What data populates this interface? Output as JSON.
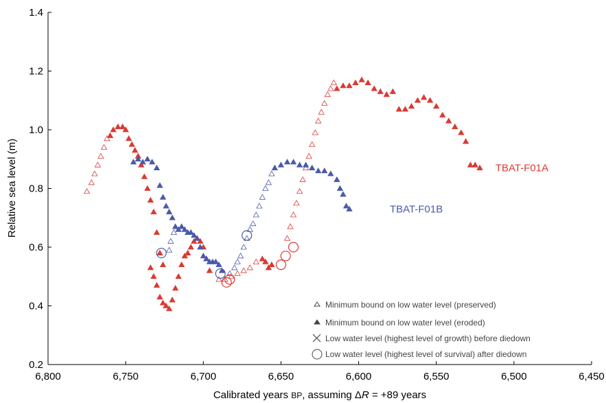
{
  "chart_data": {
    "type": "scatter",
    "xlabel_prefix": "Calibrated years ",
    "xlabel_bp": "BP",
    "xlabel_mid": ", assuming Δ",
    "xlabel_r": "R",
    "xlabel_suffix": " = +89 years",
    "ylabel": "Relative sea level (m)",
    "xlim": [
      6800,
      6450
    ],
    "ylim": [
      0.2,
      1.4
    ],
    "x_reversed": true,
    "x_ticks": [
      6800,
      6750,
      6700,
      6650,
      6600,
      6550,
      6500,
      6450
    ],
    "x_tick_labels": [
      "6,800",
      "6,750",
      "6,700",
      "6,650",
      "6,600",
      "6,550",
      "6,500",
      "6,450"
    ],
    "y_ticks": [
      0.2,
      0.4,
      0.6,
      0.8,
      1.0,
      1.2,
      1.4
    ],
    "y_tick_labels": [
      "0.2",
      "0.4",
      "0.6",
      "0.8",
      "1.0",
      "1.2",
      "1.4"
    ],
    "grid": false,
    "legend_position": "bottom-right",
    "legend": [
      {
        "marker": "open-triangle",
        "label": "Minimum bound on low water level (preserved)"
      },
      {
        "marker": "filled-triangle",
        "label": "Minimum bound on low water level (eroded)"
      },
      {
        "marker": "cross",
        "label": "Low water level (highest level of growth) before diedown"
      },
      {
        "marker": "circle",
        "label": "Low water level (highest level of survival) after diedown"
      }
    ],
    "series": [
      {
        "name": "TBAT-F01A",
        "color": "#d93a33",
        "preserved": [
          [
            6775,
            0.79
          ],
          [
            6772,
            0.82
          ],
          [
            6770,
            0.85
          ],
          [
            6768,
            0.88
          ],
          [
            6766,
            0.91
          ],
          [
            6764,
            0.94
          ],
          [
            6762,
            0.97
          ],
          [
            6690,
            0.49
          ],
          [
            6686,
            0.49
          ],
          [
            6682,
            0.5
          ],
          [
            6678,
            0.51
          ],
          [
            6674,
            0.52
          ],
          [
            6670,
            0.53
          ],
          [
            6666,
            0.55
          ],
          [
            6646,
            0.63
          ],
          [
            6644,
            0.67
          ],
          [
            6642,
            0.71
          ],
          [
            6640,
            0.75
          ],
          [
            6638,
            0.79
          ],
          [
            6636,
            0.83
          ],
          [
            6634,
            0.87
          ],
          [
            6632,
            0.91
          ],
          [
            6630,
            0.95
          ],
          [
            6628,
            0.99
          ],
          [
            6626,
            1.03
          ],
          [
            6624,
            1.06
          ],
          [
            6622,
            1.09
          ],
          [
            6620,
            1.12
          ],
          [
            6618,
            1.14
          ],
          [
            6616,
            1.16
          ]
        ],
        "eroded": [
          [
            6760,
            0.98
          ],
          [
            6758,
            1.0
          ],
          [
            6755,
            1.01
          ],
          [
            6752,
            1.01
          ],
          [
            6750,
            1.0
          ],
          [
            6748,
            0.97
          ],
          [
            6746,
            0.95
          ],
          [
            6744,
            0.93
          ],
          [
            6742,
            0.91
          ],
          [
            6740,
            0.88
          ],
          [
            6738,
            0.84
          ],
          [
            6736,
            0.8
          ],
          [
            6734,
            0.76
          ],
          [
            6732,
            0.72
          ],
          [
            6730,
            0.65
          ],
          [
            6728,
            0.58
          ],
          [
            6726,
            0.54
          ],
          [
            6734,
            0.53
          ],
          [
            6732,
            0.5
          ],
          [
            6730,
            0.47
          ],
          [
            6728,
            0.43
          ],
          [
            6726,
            0.41
          ],
          [
            6724,
            0.4
          ],
          [
            6722,
            0.39
          ],
          [
            6720,
            0.42
          ],
          [
            6718,
            0.46
          ],
          [
            6716,
            0.5
          ],
          [
            6714,
            0.54
          ],
          [
            6712,
            0.57
          ],
          [
            6710,
            0.58
          ],
          [
            6708,
            0.6
          ],
          [
            6706,
            0.62
          ],
          [
            6704,
            0.63
          ],
          [
            6702,
            0.62
          ],
          [
            6700,
            0.6
          ],
          [
            6698,
            0.56
          ],
          [
            6696,
            0.52
          ],
          [
            6662,
            0.56
          ],
          [
            6660,
            0.55
          ],
          [
            6658,
            0.53
          ],
          [
            6656,
            0.54
          ],
          [
            6614,
            1.14
          ],
          [
            6610,
            1.15
          ],
          [
            6606,
            1.15
          ],
          [
            6602,
            1.16
          ],
          [
            6598,
            1.17
          ],
          [
            6594,
            1.16
          ],
          [
            6590,
            1.14
          ],
          [
            6586,
            1.13
          ],
          [
            6582,
            1.12
          ],
          [
            6578,
            1.13
          ],
          [
            6574,
            1.07
          ],
          [
            6570,
            1.07
          ],
          [
            6566,
            1.08
          ],
          [
            6562,
            1.1
          ],
          [
            6558,
            1.11
          ],
          [
            6554,
            1.1
          ],
          [
            6550,
            1.08
          ],
          [
            6546,
            1.05
          ],
          [
            6542,
            1.03
          ],
          [
            6538,
            1.01
          ],
          [
            6534,
            0.99
          ],
          [
            6531,
            0.96
          ],
          [
            6528,
            0.88
          ],
          [
            6525,
            0.88
          ],
          [
            6522,
            0.87
          ]
        ],
        "circles": [
          [
            6685,
            0.48
          ],
          [
            6683,
            0.49
          ],
          [
            6650,
            0.54
          ],
          [
            6647,
            0.57
          ],
          [
            6642,
            0.6
          ]
        ]
      },
      {
        "name": "TBAT-F01B",
        "color": "#4a5aa8",
        "preserved": [
          [
            6722,
            0.59
          ],
          [
            6721,
            0.62
          ],
          [
            6719,
            0.65
          ],
          [
            6683,
            0.51
          ],
          [
            6680,
            0.53
          ],
          [
            6678,
            0.55
          ],
          [
            6676,
            0.57
          ],
          [
            6674,
            0.6
          ],
          [
            6672,
            0.63
          ],
          [
            6670,
            0.66
          ],
          [
            6668,
            0.68
          ],
          [
            6666,
            0.71
          ],
          [
            6664,
            0.74
          ],
          [
            6662,
            0.77
          ],
          [
            6660,
            0.8
          ],
          [
            6658,
            0.82
          ],
          [
            6656,
            0.85
          ]
        ],
        "eroded": [
          [
            6745,
            0.89
          ],
          [
            6742,
            0.9
          ],
          [
            6739,
            0.89
          ],
          [
            6736,
            0.9
          ],
          [
            6733,
            0.89
          ],
          [
            6730,
            0.87
          ],
          [
            6728,
            0.81
          ],
          [
            6726,
            0.77
          ],
          [
            6724,
            0.74
          ],
          [
            6722,
            0.72
          ],
          [
            6720,
            0.7
          ],
          [
            6718,
            0.67
          ],
          [
            6716,
            0.66
          ],
          [
            6714,
            0.67
          ],
          [
            6712,
            0.66
          ],
          [
            6710,
            0.65
          ],
          [
            6708,
            0.65
          ],
          [
            6706,
            0.64
          ],
          [
            6704,
            0.63
          ],
          [
            6702,
            0.6
          ],
          [
            6700,
            0.57
          ],
          [
            6698,
            0.56
          ],
          [
            6696,
            0.55
          ],
          [
            6694,
            0.55
          ],
          [
            6692,
            0.55
          ],
          [
            6690,
            0.54
          ],
          [
            6688,
            0.52
          ],
          [
            6654,
            0.87
          ],
          [
            6650,
            0.88
          ],
          [
            6646,
            0.89
          ],
          [
            6642,
            0.89
          ],
          [
            6638,
            0.88
          ],
          [
            6634,
            0.88
          ],
          [
            6630,
            0.87
          ],
          [
            6626,
            0.86
          ],
          [
            6622,
            0.86
          ],
          [
            6618,
            0.85
          ],
          [
            6614,
            0.83
          ],
          [
            6612,
            0.8
          ],
          [
            6610,
            0.78
          ],
          [
            6608,
            0.74
          ],
          [
            6606,
            0.73
          ]
        ],
        "circles": [
          [
            6727,
            0.58
          ],
          [
            6689,
            0.51
          ],
          [
            6672,
            0.64
          ]
        ]
      }
    ],
    "annotations": [
      {
        "text": "TBAT-F01A",
        "x": 6500,
        "y": 0.87,
        "color": "#d93a33"
      },
      {
        "text": "TBAT-F01B",
        "x": 6568,
        "y": 0.73,
        "color": "#4a5aa8"
      }
    ]
  }
}
